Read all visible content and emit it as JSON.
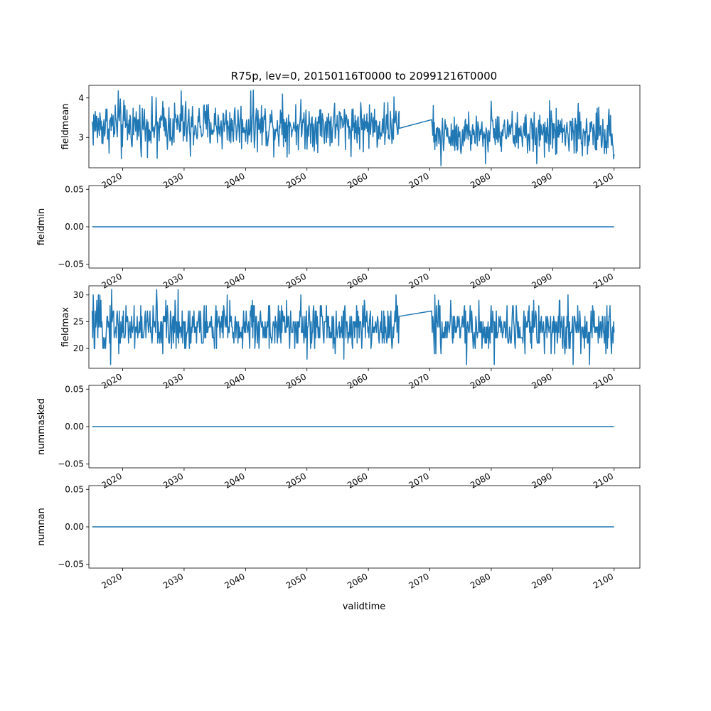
{
  "figure": {
    "title": "R75p, lev=0, 20150116T0000 to 20991216T0000",
    "xlabel": "validtime"
  },
  "chart_data": [
    {
      "type": "line",
      "title": "R75p, lev=0, 20150116T0000 to 20991216T0000",
      "ylabel": "fieldmean",
      "xlabel": "",
      "x_ticks": [
        "2020",
        "2030",
        "2040",
        "2050",
        "2060",
        "2070",
        "2080",
        "2090",
        "2100"
      ],
      "y_ticks": [
        "3",
        "4"
      ],
      "xlim": [
        2014.5,
        2104.2
      ],
      "ylim": [
        2.23,
        4.32
      ],
      "series": [
        {
          "color": "#1f77b4",
          "segments": [
            {
              "x_range": [
                2015.04,
                2065.0
              ],
              "mean": 3.3,
              "min": 2.45,
              "max": 4.2,
              "amplitude": 0.4,
              "spikes": [
                [
                  2019.3,
                  4.18
                ],
                [
                  2029.5,
                  4.18
                ],
                [
                  2041.3,
                  4.2
                ],
                [
                  2046.0,
                  4.1
                ],
                [
                  2064.2,
                  4.03
                ],
                [
                  2019.8,
                  2.46
                ],
                [
                  2025.6,
                  2.47
                ],
                [
                  2031.0,
                  2.52
                ]
              ]
            },
            {
              "x_range": [
                2065.0,
                2070.3
              ],
              "points": [
                [
                  2065.0,
                  3.23
                ],
                [
                  2070.3,
                  3.45
                ]
              ]
            },
            {
              "x_range": [
                2070.4,
                2100.0
              ],
              "mean": 3.1,
              "min": 2.28,
              "max": 3.95,
              "amplitude": 0.38,
              "spikes": [
                [
                  2071.8,
                  2.28
                ],
                [
                  2079.1,
                  2.33
                ],
                [
                  2080.0,
                  3.92
                ],
                [
                  2089.5,
                  3.93
                ],
                [
                  2094.2,
                  3.86
                ]
              ]
            }
          ]
        }
      ]
    },
    {
      "type": "line",
      "ylabel": "fieldmin",
      "xlabel": "",
      "x_ticks": [
        "2020",
        "2030",
        "2040",
        "2050",
        "2060",
        "2070",
        "2080",
        "2090",
        "2100"
      ],
      "y_ticks": [
        "−0.05",
        "0.00",
        "0.05"
      ],
      "xlim": [
        2014.5,
        2104.2
      ],
      "ylim": [
        -0.055,
        0.055
      ],
      "series": [
        {
          "color": "#1f77b4",
          "segments": [
            {
              "x_range": [
                2015.04,
                2100.0
              ],
              "points": [
                [
                  2015.04,
                  0.0
                ],
                [
                  2100.0,
                  0.0
                ]
              ]
            }
          ]
        }
      ]
    },
    {
      "type": "line",
      "ylabel": "fieldmax",
      "xlabel": "",
      "x_ticks": [
        "2020",
        "2030",
        "2040",
        "2050",
        "2060",
        "2070",
        "2080",
        "2090",
        "2100"
      ],
      "y_ticks": [
        "20",
        "25",
        "30"
      ],
      "xlim": [
        2014.5,
        2104.2
      ],
      "ylim": [
        16.3,
        31.7
      ],
      "series": [
        {
          "color": "#1f77b4",
          "segments": [
            {
              "x_range": [
                2015.04,
                2065.0
              ],
              "mean": 24,
              "min": 17,
              "max": 31,
              "amplitude": 3,
              "step": 1,
              "spikes": [
                [
                  2018.2,
                  31
                ],
                [
                  2025.5,
                  31
                ],
                [
                  2029.0,
                  31
                ],
                [
                  2018.0,
                  17
                ],
                [
                  2037.0,
                  30
                ],
                [
                  2064.5,
                  30
                ],
                [
                  2050.0,
                  18
                ]
              ]
            },
            {
              "x_range": [
                2065.0,
                2070.3
              ],
              "points": [
                [
                  2065.0,
                  26
                ],
                [
                  2070.3,
                  27
                ]
              ]
            },
            {
              "x_range": [
                2070.4,
                2100.0
              ],
              "mean": 24,
              "min": 17,
              "max": 30,
              "amplitude": 3,
              "step": 1,
              "spikes": [
                [
                  2076.0,
                  17
                ],
                [
                  2078.0,
                  29
                ],
                [
                  2080.5,
                  17
                ],
                [
                  2093.3,
                  17
                ],
                [
                  2096.0,
                  17
                ],
                [
                  2092.5,
                  30
                ]
              ]
            }
          ]
        }
      ]
    },
    {
      "type": "line",
      "ylabel": "nummasked",
      "xlabel": "",
      "x_ticks": [
        "2020",
        "2030",
        "2040",
        "2050",
        "2060",
        "2070",
        "2080",
        "2090",
        "2100"
      ],
      "y_ticks": [
        "−0.05",
        "0.00",
        "0.05"
      ],
      "xlim": [
        2014.5,
        2104.2
      ],
      "ylim": [
        -0.055,
        0.055
      ],
      "series": [
        {
          "color": "#1f77b4",
          "segments": [
            {
              "x_range": [
                2015.04,
                2100.0
              ],
              "points": [
                [
                  2015.04,
                  0.0
                ],
                [
                  2100.0,
                  0.0
                ]
              ]
            }
          ]
        }
      ]
    },
    {
      "type": "line",
      "ylabel": "numnan",
      "xlabel": "validtime",
      "x_ticks": [
        "2020",
        "2030",
        "2040",
        "2050",
        "2060",
        "2070",
        "2080",
        "2090",
        "2100"
      ],
      "y_ticks": [
        "−0.05",
        "0.00",
        "0.05"
      ],
      "xlim": [
        2014.5,
        2104.2
      ],
      "ylim": [
        -0.055,
        0.055
      ],
      "series": [
        {
          "color": "#1f77b4",
          "segments": [
            {
              "x_range": [
                2015.04,
                2100.0
              ],
              "points": [
                [
                  2015.04,
                  0.0
                ],
                [
                  2100.0,
                  0.0
                ]
              ]
            }
          ]
        }
      ]
    }
  ]
}
